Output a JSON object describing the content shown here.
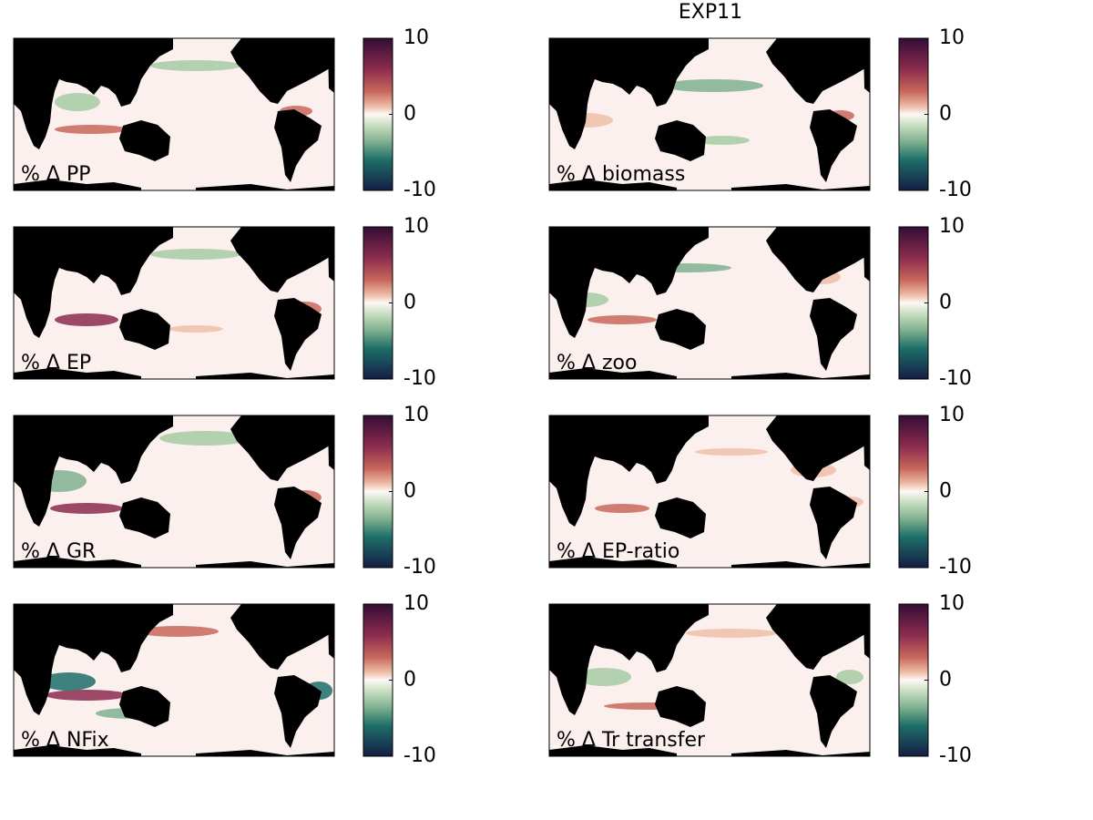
{
  "title": "EXP11",
  "panels": [
    {
      "label": "% Δ PP"
    },
    {
      "label": "% Δ biomass"
    },
    {
      "label": "% Δ EP"
    },
    {
      "label": "% Δ zoo"
    },
    {
      "label": "% Δ GR"
    },
    {
      "label": "% Δ EP-ratio"
    },
    {
      "label": "% Δ NFix"
    },
    {
      "label": "% Δ Tr transfer"
    }
  ],
  "colorbar": {
    "lim": [
      -10,
      10
    ],
    "ticks": [
      10,
      0,
      -10
    ]
  }
}
